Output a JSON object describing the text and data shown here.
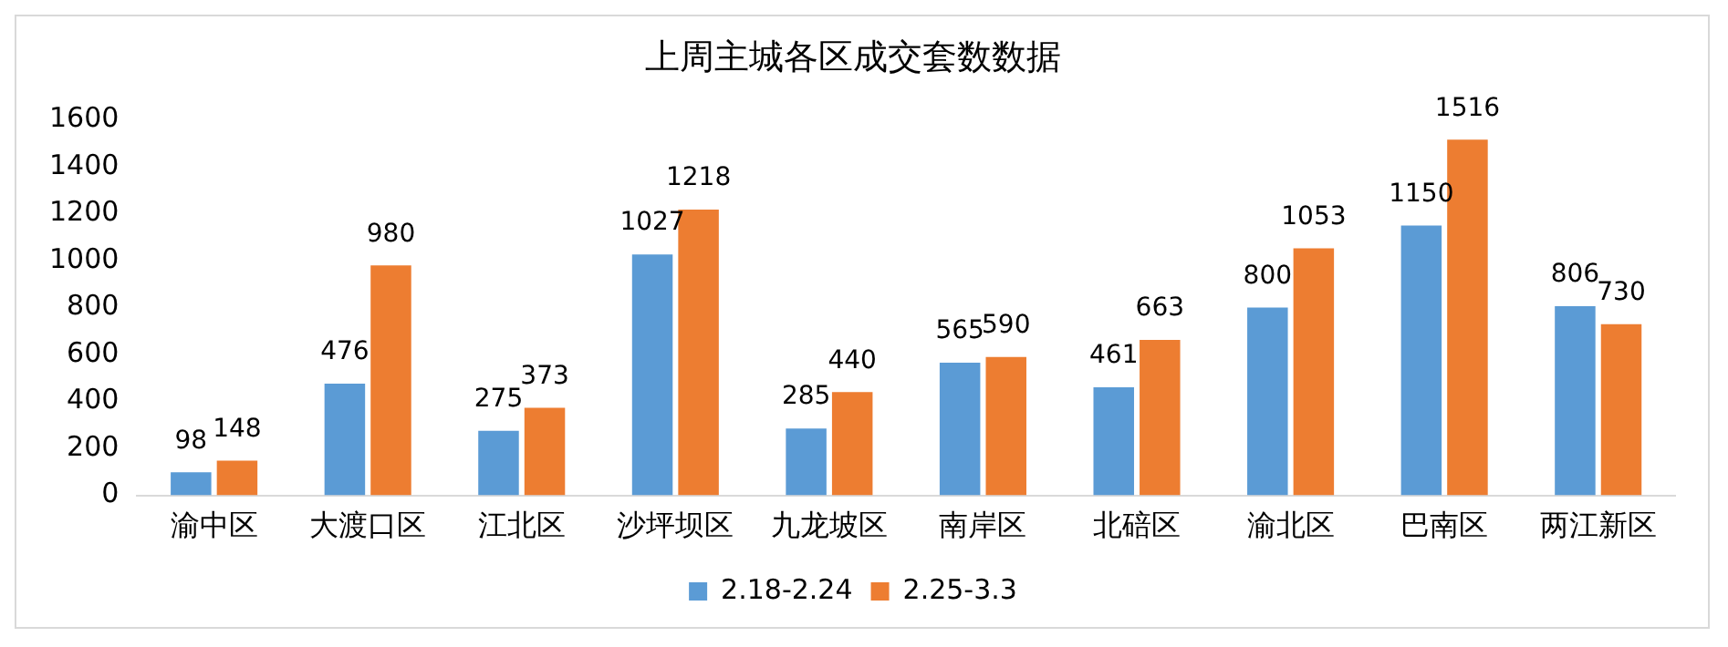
{
  "chart_data": {
    "type": "bar",
    "title": "上周主城各区成交套数数据",
    "categories": [
      "渝中区",
      "大渡口区",
      "江北区",
      "沙坪坝区",
      "九龙坡区",
      "南岸区",
      "北碚区",
      "渝北区",
      "巴南区",
      "两江新区"
    ],
    "series": [
      {
        "name": "2.18-2.24",
        "color": "#5b9bd5",
        "values": [
          98,
          476,
          275,
          1027,
          285,
          565,
          461,
          800,
          1150,
          806
        ]
      },
      {
        "name": "2.25-3.3",
        "color": "#ed7d31",
        "values": [
          148,
          980,
          373,
          1218,
          440,
          590,
          663,
          1053,
          1516,
          730
        ]
      }
    ],
    "ylim": [
      0,
      1600
    ],
    "yticks": [
      0,
      200,
      400,
      600,
      800,
      1000,
      1200,
      1400,
      1600
    ],
    "grid": false,
    "legend": "bottom",
    "data_labels": true
  }
}
